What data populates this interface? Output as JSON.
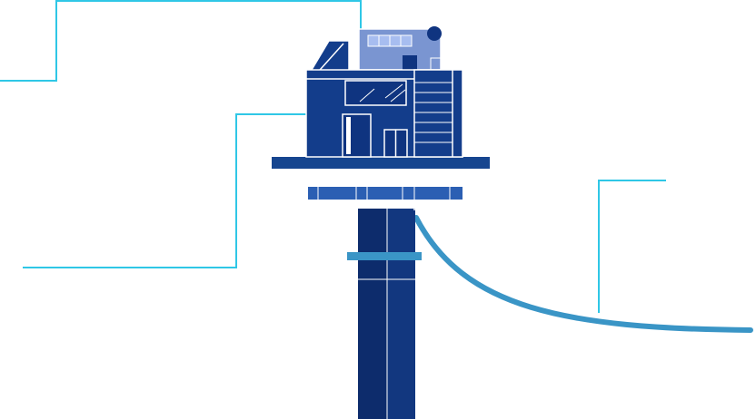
{
  "illustration": {
    "subject": "offshore-platform-house",
    "colors": {
      "background": "#ffffff",
      "callout_line": "#2fc7e6",
      "house_main": "#133d8b",
      "house_dark": "#0f3480",
      "house_roof_box": "#7a95d1",
      "house_roof_window": "#a7bdf0",
      "deck": "#16458f",
      "lower_deck": "#2b5fb3",
      "pillar": "#12377f",
      "pillar_dark": "#0d2c6c",
      "band": "#3a95c6",
      "cable": "#3a95c6",
      "outline": "#ffffff"
    }
  }
}
